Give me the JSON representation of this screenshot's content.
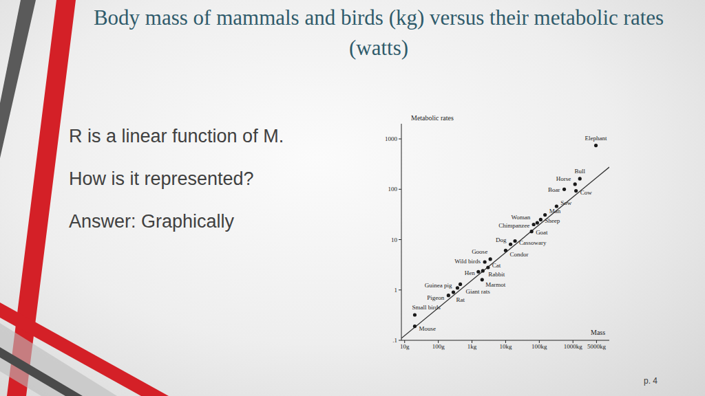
{
  "slide": {
    "title": "Body mass of mammals and birds (kg) versus their metabolic rates (watts)",
    "bullets": [
      "R is a linear function of M.",
      "How is it represented?",
      "Answer: Graphically"
    ],
    "page": "p. 4"
  },
  "chart_data": {
    "type": "scatter",
    "log": true,
    "grid": false,
    "x_label": "Mass",
    "y_label": "Metabolic rates",
    "xlim": [
      0.008,
      12000
    ],
    "ylim": [
      0.1,
      2000
    ],
    "xticks": [
      {
        "value": 0.01,
        "label": "10g"
      },
      {
        "value": 0.1,
        "label": "100g"
      },
      {
        "value": 1,
        "label": "1kg"
      },
      {
        "value": 10,
        "label": "10kg"
      },
      {
        "value": 100,
        "label": "100kg"
      },
      {
        "value": 1000,
        "label": "1000kg"
      },
      {
        "value": 5000,
        "label": "5000kg"
      }
    ],
    "yticks": [
      {
        "value": 0.1,
        "label": ".1"
      },
      1,
      10,
      100,
      1000
    ],
    "series": [
      {
        "type": "scatter",
        "marker": "circle",
        "color": "#1a1a1a",
        "point_labels": [
          "Mouse",
          "Small birds",
          "Pigeon",
          "Rat",
          "Guinea pig",
          "Giant rats",
          "Marmot",
          "Hen",
          "Rabbit",
          "Cat",
          "Wild birds",
          "Goose",
          "Condor",
          "Dog",
          "Cassowary",
          "Goat",
          "Chimpanzee",
          "Woman",
          "Sheep",
          "Man",
          "Sow",
          "Boar",
          "Horse",
          "Cow",
          "Bull",
          "Elephant"
        ],
        "x": [
          0.02,
          0.02,
          0.2,
          0.28,
          0.37,
          0.45,
          2.0,
          1.55,
          2.1,
          3.0,
          2.4,
          3.5,
          10,
          14,
          19,
          59,
          68,
          87,
          110,
          148,
          325,
          550,
          1150,
          1230,
          1600,
          4800
        ],
        "values": [
          0.19,
          0.32,
          0.78,
          0.9,
          1.1,
          1.3,
          1.6,
          2.3,
          2.4,
          2.8,
          3.6,
          4.1,
          6.1,
          8.1,
          9.4,
          14.5,
          20,
          21.6,
          25,
          31,
          46,
          100,
          126,
          93,
          162,
          740
        ]
      },
      {
        "type": "line",
        "line_style": "solid",
        "color": "#333333",
        "x": [
          0.008,
          12000
        ],
        "values": [
          0.11,
          275
        ]
      }
    ]
  }
}
